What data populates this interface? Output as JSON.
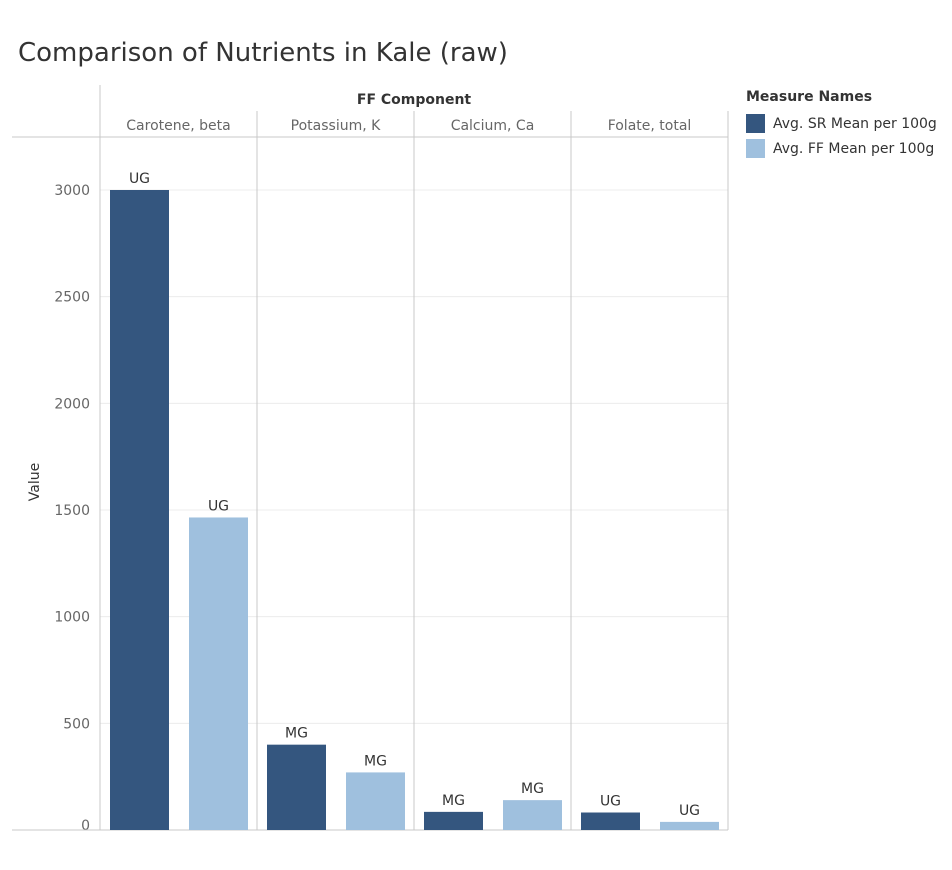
{
  "title": "Comparison of Nutrients in Kale (raw)",
  "colors": {
    "sr": "#34567f",
    "ff": "#9fc0de"
  },
  "chart_data": {
    "type": "bar",
    "title": "Comparison of Nutrients in Kale (raw)",
    "header_label": "FF Component",
    "ylabel": "Value",
    "ylim": [
      0,
      3250
    ],
    "yticks": [
      0,
      500,
      1000,
      1500,
      2000,
      2500,
      3000
    ],
    "categories": [
      "Carotene, beta",
      "Potassium, K",
      "Calcium, Ca",
      "Folate, total"
    ],
    "legend": {
      "title": "Measure Names",
      "placement": "right"
    },
    "series": [
      {
        "name": "Avg. SR Mean per 100g",
        "values": [
          3000,
          400,
          85,
          82
        ],
        "labels": [
          "UG",
          "MG",
          "MG",
          "UG"
        ]
      },
      {
        "name": "Avg. FF Mean per 100g",
        "values": [
          1465,
          270,
          140,
          38
        ],
        "labels": [
          "UG",
          "MG",
          "MG",
          "UG"
        ]
      }
    ],
    "grid": true
  }
}
